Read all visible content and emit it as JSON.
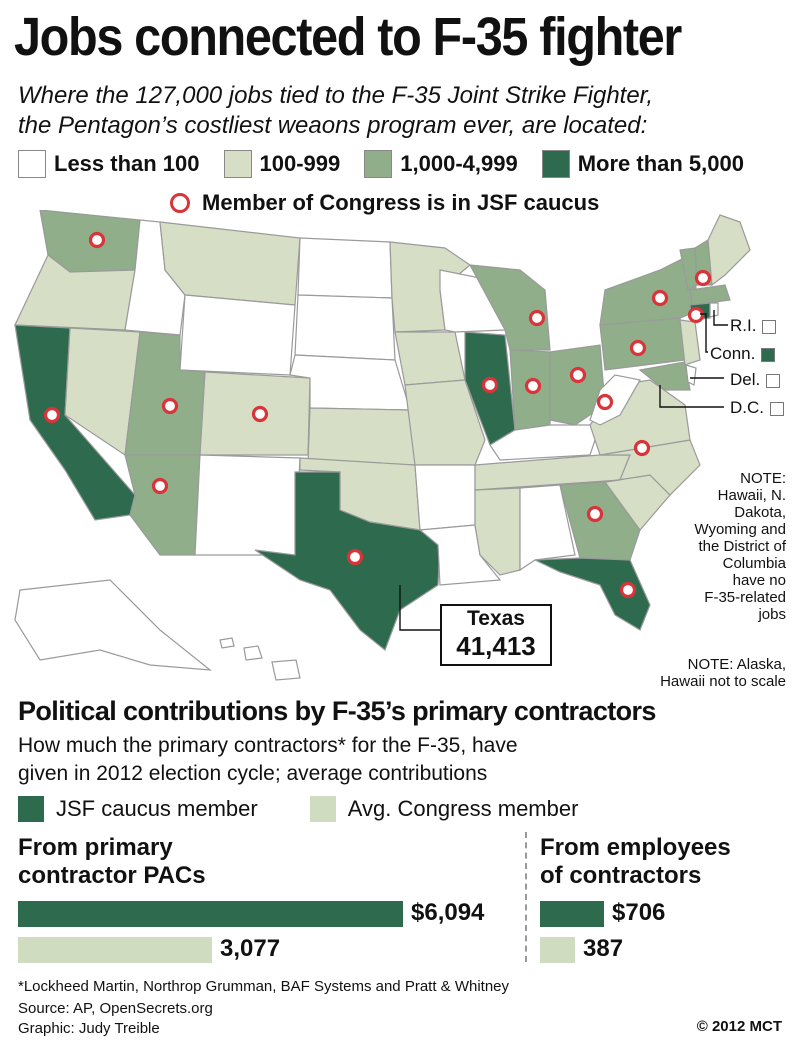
{
  "title": "Jobs connected to F-35 fighter",
  "subtitle_line1": "Where the 127,000 jobs tied to the F-35 Joint Strike Fighter,",
  "subtitle_line2": "the Pentagon’s costliest weaons program ever, are located:",
  "legend": [
    {
      "label": "Less than 100",
      "color": "#ffffff"
    },
    {
      "label": "100-999",
      "color": "#d6dfc6"
    },
    {
      "label": "1,000-4,999",
      "color": "#8fae89"
    },
    {
      "label": "More than 5,000",
      "color": "#2e6b4e"
    }
  ],
  "caucus_label": "Member of Congress is in JSF caucus",
  "small_states": [
    {
      "label": "R.I.",
      "color": "#ffffff"
    },
    {
      "label": "Conn.",
      "color": "#2e6b4e"
    },
    {
      "label": "Del.",
      "color": "#ffffff"
    },
    {
      "label": "D.C.",
      "color": "#ffffff"
    }
  ],
  "texas_callout": {
    "name": "Texas",
    "value": "41,413"
  },
  "note1": [
    "NOTE:",
    "Hawaii, N.",
    "Dakota,",
    "Wyoming and",
    "the District of",
    "Columbia",
    "have no",
    "F-35-related",
    "jobs"
  ],
  "note2": [
    "NOTE: Alaska,",
    "Hawaii not to scale"
  ],
  "contrib_title": "Political contributions by F-35’s primary contractors",
  "contrib_desc_line1": "How much the primary contractors* for the F-35, have",
  "contrib_desc_line2": "given in 2012 election cycle; average contributions",
  "bar_legend": [
    {
      "label": "JSF caucus member",
      "color": "#2e6b4e"
    },
    {
      "label": "Avg. Congress member",
      "color": "#cfdcc0"
    }
  ],
  "chart_data": [
    {
      "type": "bar",
      "title": "From primary contractor PACs",
      "title_line1": "From primary",
      "title_line2": "contractor PACs",
      "categories": [
        "JSF caucus member",
        "Avg. Congress member"
      ],
      "values": [
        6094,
        3077
      ],
      "labels": [
        "$6,094",
        "3,077"
      ]
    },
    {
      "type": "bar",
      "title": "From employees of contractors",
      "title_line1": "From employees",
      "title_line2": "of contractors",
      "categories": [
        "JSF caucus member",
        "Avg. Congress member"
      ],
      "values": [
        706,
        387
      ],
      "labels": [
        "$706",
        "387"
      ]
    }
  ],
  "footnote": "*Lockheed Martin, Northrop Grumman, BAF Systems and Pratt & Whitney",
  "source": "Source: AP, OpenSecrets.org",
  "credit": "Graphic: Judy Treible",
  "copyright": "© 2012 MCT"
}
